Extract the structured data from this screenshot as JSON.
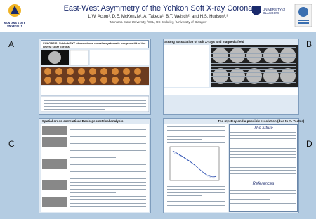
{
  "header": {
    "title": "East-West Asymmetry of the Yohkoh Soft X-ray Corona",
    "authors": "L.W. Acton¹, D.E. McKenzie¹, A. Takeda¹, B.T. Welsch², and H.S. Hudson²,³",
    "affiliations": "¹Montana State University, ²SSL, UC Berkeley, ³University of Glasgow",
    "logo_left": "MONTANA STATE UNIVERSITY",
    "logo_right": "UNIVERSITY of GLASGOW"
  },
  "panels": {
    "a": {
      "letter": "A",
      "synopsis": "SYNOPSIS: Yohkoh/SXT observations reveal a systematic prograde tilt of the lowest solar corona."
    },
    "b": {
      "letter": "B",
      "heading": "Strong association of soft X-rays and magnetic field"
    },
    "c": {
      "letter": "C",
      "heading": "Spatial cross-correlation: Basic geometrical analysis"
    },
    "d": {
      "letter": "D",
      "heading": "The mystery and a possible resolution (due to A. Yeates)",
      "future": "The future",
      "references": "References"
    }
  }
}
